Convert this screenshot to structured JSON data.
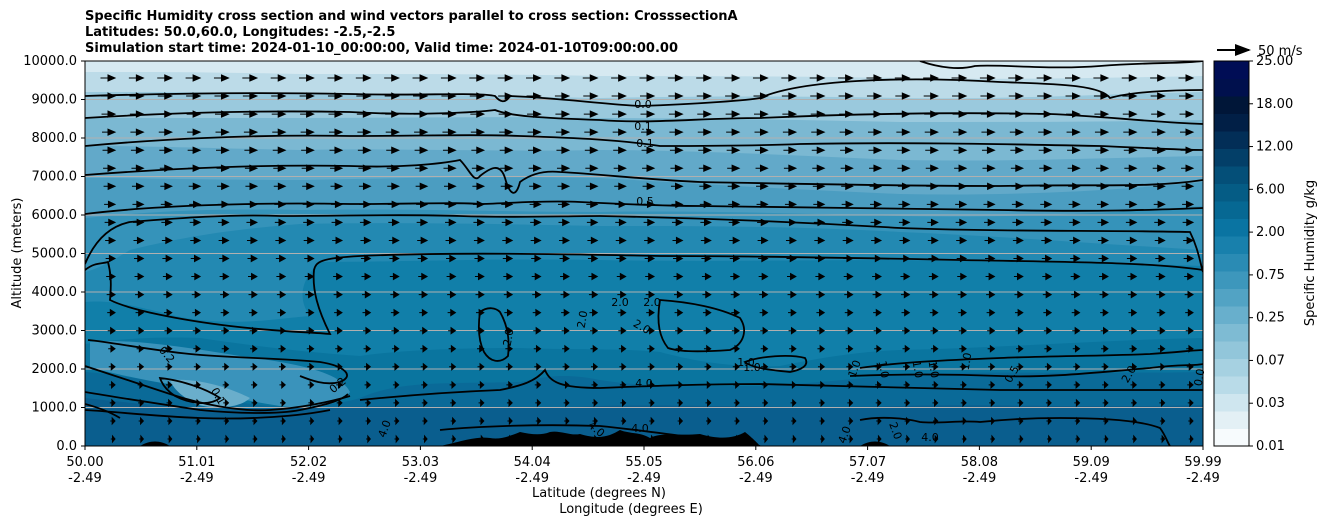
{
  "chart_data": {
    "type": "heatmap",
    "title_lines": [
      "Specific Humidity cross section and wind vectors parallel to cross section: CrosssectionA",
      "Latitudes: 50.0,60.0, Longitudes: -2.5,-2.5",
      "Simulation start time: 2024-01-10_00:00:00, Valid time: 2024-01-10T09:00:00.00"
    ],
    "xlabel_lines": [
      "Latitude (degrees N)",
      "Longitude (degrees E)"
    ],
    "ylabel": "Altitude (meters)",
    "ylim": [
      0,
      10000
    ],
    "y_ticks": [
      "0.0",
      "1000.0",
      "2000.0",
      "3000.0",
      "4000.0",
      "5000.0",
      "6000.0",
      "7000.0",
      "8000.0",
      "9000.0",
      "10000.0"
    ],
    "x_ticks": [
      {
        "lat": "50.00",
        "lon": "-2.49"
      },
      {
        "lat": "51.01",
        "lon": "-2.49"
      },
      {
        "lat": "52.02",
        "lon": "-2.49"
      },
      {
        "lat": "53.03",
        "lon": "-2.49"
      },
      {
        "lat": "54.04",
        "lon": "-2.49"
      },
      {
        "lat": "55.05",
        "lon": "-2.49"
      },
      {
        "lat": "56.06",
        "lon": "-2.49"
      },
      {
        "lat": "57.07",
        "lon": "-2.49"
      },
      {
        "lat": "58.08",
        "lon": "-2.49"
      },
      {
        "lat": "59.09",
        "lon": "-2.49"
      },
      {
        "lat": "59.99",
        "lon": "-2.49"
      }
    ],
    "colorbar": {
      "label": "Specific Humidity g/kg",
      "tick_labels": [
        "0.01",
        "0.03",
        "0.07",
        "0.25",
        "0.75",
        "2.00",
        "6.00",
        "12.00",
        "18.00",
        "25.00"
      ],
      "colors": [
        "#f7fbfd",
        "#e3f0f5",
        "#cfe6ef",
        "#b9dbe8",
        "#a6d1e1",
        "#92c6da",
        "#7ebbd3",
        "#68afcc",
        "#52a3c4",
        "#3d97bc",
        "#2a8bb4",
        "#1880ac",
        "#0a74a2",
        "#066893",
        "#055c85",
        "#044f78",
        "#033f68",
        "#022e57",
        "#011f46",
        "#001638",
        "#00104d",
        "#000d55"
      ]
    },
    "contour_labels": [
      "0.0",
      "0.1",
      "0.1",
      "0.5",
      "0.2",
      "0.1",
      "0.2",
      "2.0",
      "2.0",
      "2.0",
      "2.0",
      "2.0",
      "1.0",
      "1.0",
      "1.0",
      "1.0",
      "1.0",
      "1.0",
      "1.0",
      "0.5",
      "2.0",
      "4.0",
      "4.0",
      "4.0",
      "4.0",
      "4.0",
      "4.0",
      "2.0",
      "0.0"
    ],
    "quiver_key": "50 m/s",
    "grid": true
  }
}
